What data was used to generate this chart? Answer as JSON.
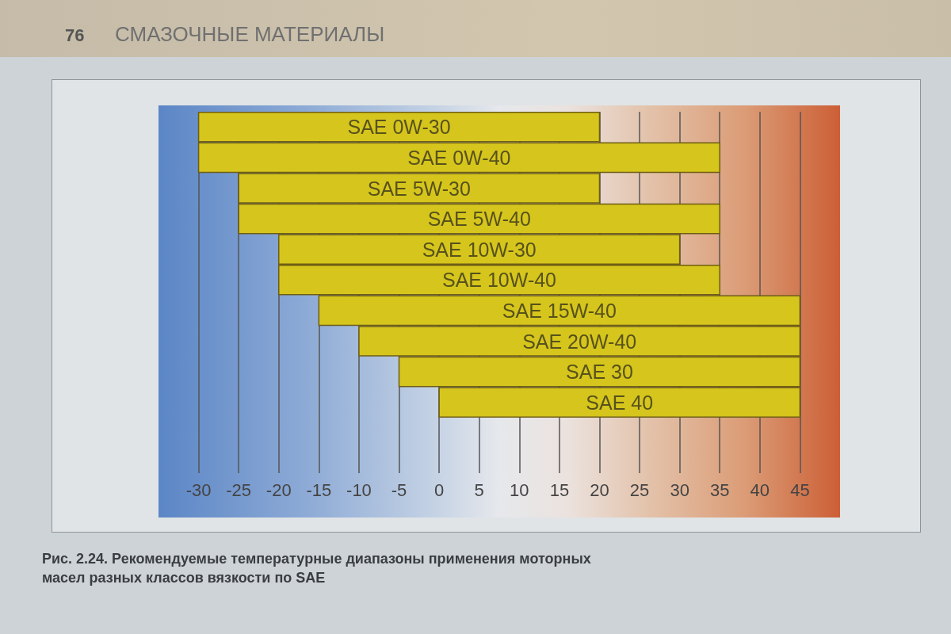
{
  "chart_data": {
    "type": "bar",
    "orientation": "horizontal",
    "title": "Рис. 2.24. Рекомендуемые температурные диапазоны применения моторных масел разных классов вязкости по SAE",
    "annotations": [
      "76",
      "СМАЗОЧНЫЕ МАТЕРИАЛЫ"
    ],
    "categories": [
      "SAE 0W-30",
      "SAE 0W-40",
      "SAE 5W-30",
      "SAE 5W-40",
      "SAE 10W-30",
      "SAE 10W-40",
      "SAE 15W-40",
      "SAE 20W-40",
      "SAE 30",
      "SAE 40"
    ],
    "base": [
      -30,
      -30,
      -25,
      -25,
      -20,
      -20,
      -15,
      -10,
      -5,
      0
    ],
    "values": [
      50,
      65,
      45,
      60,
      50,
      55,
      60,
      55,
      50,
      45
    ],
    "color": "#d6c51c",
    "xlim": [
      -35,
      50
    ],
    "xticks": [
      -30,
      -25,
      -20,
      -15,
      -10,
      -5,
      0,
      5,
      10,
      15,
      20,
      25,
      30,
      35,
      40,
      45
    ],
    "grid": "x",
    "tick_labels": "x"
  }
}
